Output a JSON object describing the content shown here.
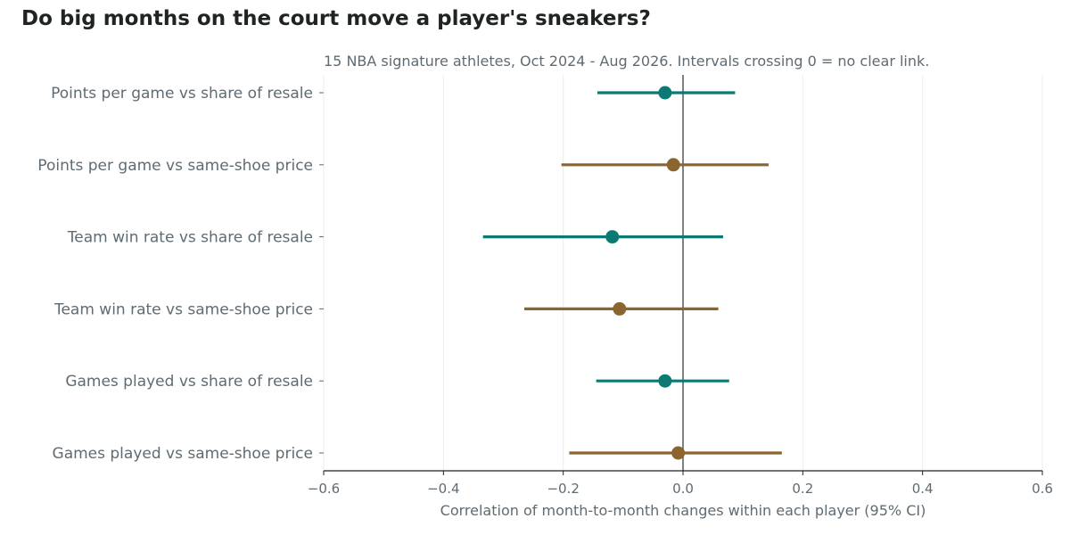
{
  "title": "Do big months on the court move a player's sneakers?",
  "subtitle": "15 NBA signature athletes, Oct 2024 - Aug 2026. Intervals crossing 0 = no clear link.",
  "colors": {
    "share": "#0b7a75",
    "price": "#8c6430",
    "text": "#5f6b73",
    "title": "#1f2324"
  },
  "chart_data": {
    "type": "forest",
    "xlabel": "Correlation of month-to-month changes within each player (95% CI)",
    "xlim": [
      -0.6,
      0.6
    ],
    "xticks": [
      -0.6,
      -0.4,
      -0.2,
      0.0,
      0.2,
      0.4,
      0.6
    ],
    "xtick_labels": [
      "−0.6",
      "−0.4",
      "−0.2",
      "0.0",
      "0.2",
      "0.4",
      "0.6"
    ],
    "reference_line": 0,
    "grid": "vertical",
    "rows": [
      {
        "label": "Points per game vs share of resale",
        "estimate": -0.03,
        "ci_low": -0.143,
        "ci_high": 0.087,
        "group": "share"
      },
      {
        "label": "Points per game vs same-shoe price",
        "estimate": -0.016,
        "ci_low": -0.203,
        "ci_high": 0.143,
        "group": "price"
      },
      {
        "label": "Team win rate vs share of resale",
        "estimate": -0.118,
        "ci_low": -0.334,
        "ci_high": 0.067,
        "group": "share"
      },
      {
        "label": "Team win rate vs same-shoe price",
        "estimate": -0.106,
        "ci_low": -0.265,
        "ci_high": 0.059,
        "group": "price"
      },
      {
        "label": "Games played vs share of resale",
        "estimate": -0.03,
        "ci_low": -0.145,
        "ci_high": 0.077,
        "group": "share"
      },
      {
        "label": "Games played vs same-shoe price",
        "estimate": -0.008,
        "ci_low": -0.19,
        "ci_high": 0.165,
        "group": "price"
      }
    ]
  }
}
